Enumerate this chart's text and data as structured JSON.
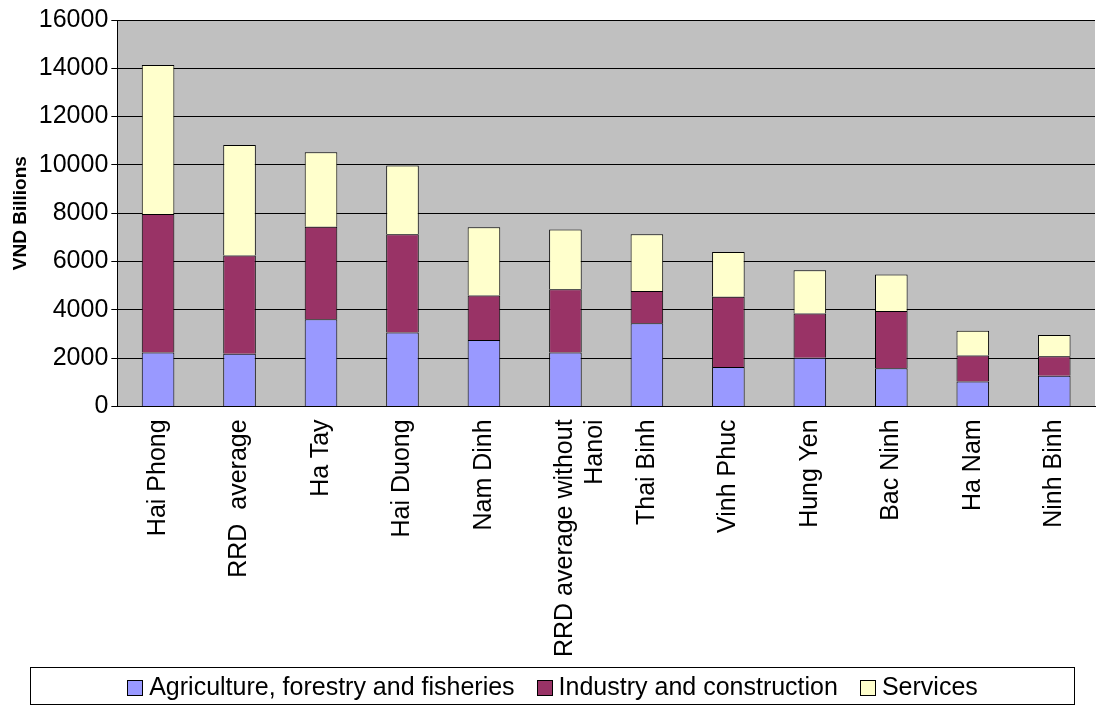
{
  "chart_data": {
    "type": "bar",
    "ylabel": "VND Billions",
    "stacked": true,
    "grid": "y",
    "legend": "bottom",
    "categories": [
      "Hai Phong",
      "RRD  average",
      "Ha Tay",
      "Hai Duong",
      "Nam Dinh",
      "RRD average without Hanoi",
      "Thai Binh",
      "Vinh Phuc",
      "Hung Yen",
      "Bac Ninh",
      "Ha Nam",
      "Ninh Binh"
    ],
    "ylim": [
      0,
      16000
    ],
    "yticks": [
      0,
      2000,
      4000,
      6000,
      8000,
      10000,
      12000,
      14000,
      16000
    ],
    "series": [
      {
        "name": "Agriculture, forestry and fisheries",
        "color": "#9999ff",
        "values": [
          2230,
          2180,
          3610,
          3060,
          2750,
          2230,
          3440,
          1630,
          2010,
          1580,
          1030,
          1270
        ]
      },
      {
        "name": "Industry and construction",
        "color": "#993366",
        "values": [
          5740,
          4070,
          3830,
          4070,
          1840,
          2620,
          1340,
          2910,
          1840,
          2370,
          1080,
          810
        ]
      },
      {
        "name": "Services",
        "color": "#ffffcc",
        "values": [
          6170,
          4570,
          3080,
          2840,
          2830,
          2470,
          2350,
          1850,
          1790,
          1510,
          1020,
          880
        ]
      }
    ]
  }
}
